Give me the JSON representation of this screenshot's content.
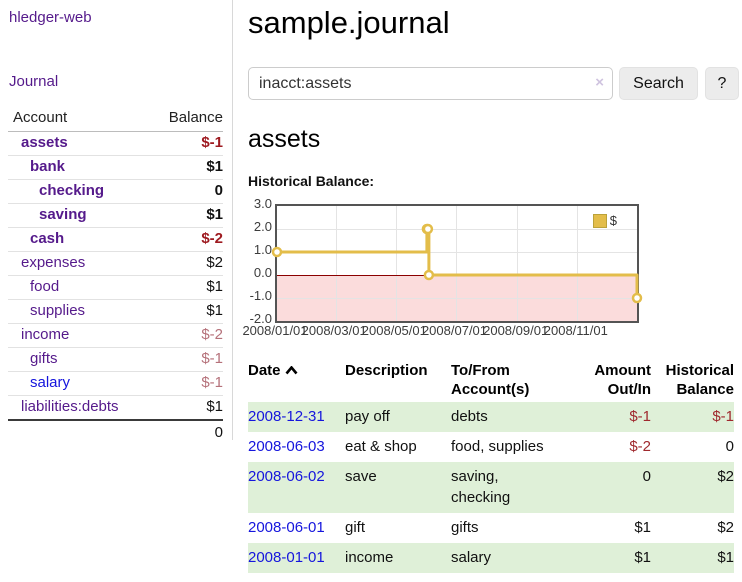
{
  "app": {
    "title": "hledger-web",
    "nav_journal": "Journal"
  },
  "colors": {
    "accent_purple": "#551a8b",
    "link_blue": "#1515dd",
    "negative_strong": "#9e1a20",
    "negative_pale": "#b5717a",
    "negative_table": "#9f282d",
    "row_green": "#dff0d8",
    "chart_gold": "#e3bd4a",
    "chart_negative_fill": "#fbdcdc",
    "chart_zero_line": "#8b0000"
  },
  "sidebar": {
    "header": {
      "account": "Account",
      "balance": "Balance"
    },
    "accounts": [
      {
        "name": "assets",
        "depth": 1,
        "bold": true,
        "balance": "$-1",
        "balance_class": "neg-strong"
      },
      {
        "name": "bank",
        "depth": 2,
        "bold": true,
        "balance": "$1",
        "balance_class": ""
      },
      {
        "name": "checking",
        "depth": 3,
        "bold": true,
        "balance": "0",
        "balance_class": ""
      },
      {
        "name": "saving",
        "depth": 3,
        "bold": true,
        "balance": "$1",
        "balance_class": ""
      },
      {
        "name": "cash",
        "depth": 2,
        "bold": true,
        "balance": "$-2",
        "balance_class": "neg-strong"
      },
      {
        "name": "expenses",
        "depth": 1,
        "bold": false,
        "balance": "$2",
        "balance_class": ""
      },
      {
        "name": "food",
        "depth": 2,
        "bold": false,
        "balance": "$1",
        "balance_class": ""
      },
      {
        "name": "supplies",
        "depth": 2,
        "bold": false,
        "balance": "$1",
        "balance_class": ""
      },
      {
        "name": "income",
        "depth": 1,
        "bold": false,
        "balance": "$-2",
        "balance_class": "neg-pale"
      },
      {
        "name": "gifts",
        "depth": 2,
        "bold": false,
        "balance": "$-1",
        "balance_class": "neg-pale"
      },
      {
        "name": "salary",
        "depth": 2,
        "bold": false,
        "balance": "$-1",
        "balance_class": "neg-pale",
        "blue": true
      },
      {
        "name": "liabilities:debts",
        "depth": 1,
        "bold": false,
        "balance": "$1",
        "balance_class": ""
      }
    ],
    "total": "0"
  },
  "main": {
    "title": "sample.journal",
    "account_heading": "assets",
    "chart_label": "Historical Balance:"
  },
  "search": {
    "value": "inacct:assets",
    "clear_icon": "×",
    "button_label": "Search",
    "help_label": "?"
  },
  "chart_data": {
    "type": "line",
    "step": true,
    "title": "Historical Balance:",
    "legend_position": "top-right",
    "grid": true,
    "xlim_days": [
      0,
      365
    ],
    "ylim": [
      -2,
      3
    ],
    "y_ticks": [
      {
        "label": "3.0",
        "value": 3
      },
      {
        "label": "2.0",
        "value": 2
      },
      {
        "label": "1.0",
        "value": 1
      },
      {
        "label": "0.0",
        "value": 0
      },
      {
        "label": "-1.0",
        "value": -1
      },
      {
        "label": "-2.0",
        "value": -2
      }
    ],
    "x_ticks": [
      {
        "label": "2008/01/01",
        "day": 0
      },
      {
        "label": "2008/03/01",
        "day": 60
      },
      {
        "label": "2008/05/01",
        "day": 121
      },
      {
        "label": "2008/07/01",
        "day": 182
      },
      {
        "label": "2008/09/01",
        "day": 244
      },
      {
        "label": "2008/11/01",
        "day": 305
      }
    ],
    "series": [
      {
        "name": "$",
        "color": "#e3bd4a",
        "points": [
          {
            "date": "2008-01-01",
            "day": 0,
            "value": 1
          },
          {
            "date": "2008-06-01",
            "day": 152,
            "value": 2
          },
          {
            "date": "2008-06-02",
            "day": 153,
            "value": 2
          },
          {
            "date": "2008-06-03",
            "day": 154,
            "value": 0
          },
          {
            "date": "2008-12-31",
            "day": 365,
            "value": -1
          }
        ]
      }
    ]
  },
  "register": {
    "columns": {
      "date": "Date",
      "description": "Description",
      "accounts": "To/From Account(s)",
      "amount": "Amount Out/In",
      "balance": "Historical Balance"
    },
    "rows": [
      {
        "date": "2008-12-31",
        "description": "pay off",
        "accounts": "debts",
        "amount": "$-1",
        "balance": "$-1",
        "amount_negative": true,
        "balance_negative": true
      },
      {
        "date": "2008-06-03",
        "description": "eat & shop",
        "accounts": "food, supplies",
        "amount": "$-2",
        "balance": "0",
        "amount_negative": true,
        "balance_negative": false
      },
      {
        "date": "2008-06-02",
        "description": "save",
        "accounts": "saving,\nchecking",
        "amount": "0",
        "balance": "$2",
        "amount_negative": false,
        "balance_negative": false
      },
      {
        "date": "2008-06-01",
        "description": "gift",
        "accounts": "gifts",
        "amount": "$1",
        "balance": "$2",
        "amount_negative": false,
        "balance_negative": false
      },
      {
        "date": "2008-01-01",
        "description": "income",
        "accounts": "salary",
        "amount": "$1",
        "balance": "$1",
        "amount_negative": false,
        "balance_negative": false
      }
    ]
  }
}
